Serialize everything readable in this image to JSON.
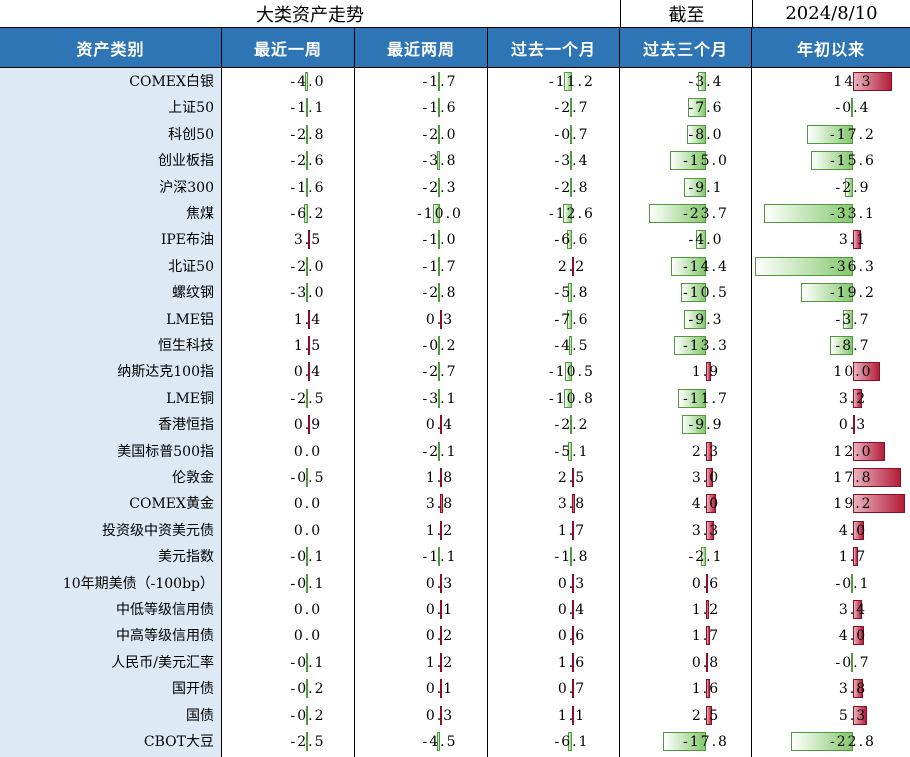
{
  "title": "大类资产走势",
  "as_of_label": "截至",
  "as_of_date": "2024/8/10",
  "columns": [
    "资产类别",
    "最近一周",
    "最近两周",
    "过去一个月",
    "过去三个月",
    "年初以来"
  ],
  "colors": {
    "header_bg": "#2e75b6",
    "name_bg": "#dde9f5",
    "positive": "#b41d3a",
    "negative": "#86c86e"
  },
  "rows": [
    {
      "name": "COMEX白银",
      "values": [
        "-4.0",
        "-1.7",
        "-11.2",
        "-3.4",
        "14.3"
      ]
    },
    {
      "name": "上证50",
      "values": [
        "-1.1",
        "-1.6",
        "-2.7",
        "-7.6",
        "-0.4"
      ]
    },
    {
      "name": "科创50",
      "values": [
        "-2.8",
        "-2.0",
        "-0.7",
        "-8.0",
        "-17.2"
      ]
    },
    {
      "name": "创业板指",
      "values": [
        "-2.6",
        "-3.8",
        "-3.4",
        "-15.0",
        "-15.6"
      ]
    },
    {
      "name": "沪深300",
      "values": [
        "-1.6",
        "-2.3",
        "-2.8",
        "-9.1",
        "-2.9"
      ]
    },
    {
      "name": "焦煤",
      "values": [
        "-6.2",
        "-10.0",
        "-12.6",
        "-23.7",
        "-33.1"
      ]
    },
    {
      "name": "IPE布油",
      "values": [
        "3.5",
        "-1.0",
        "-6.6",
        "-4.0",
        "3.1"
      ]
    },
    {
      "name": "北证50",
      "values": [
        "-2.0",
        "-1.7",
        "2.2",
        "-14.4",
        "-36.3"
      ]
    },
    {
      "name": "螺纹钢",
      "values": [
        "-3.0",
        "-2.8",
        "-5.8",
        "-10.5",
        "-19.2"
      ]
    },
    {
      "name": "LME铝",
      "values": [
        "1.4",
        "0.3",
        "-7.6",
        "-9.3",
        "-3.7"
      ]
    },
    {
      "name": "恒生科技",
      "values": [
        "1.5",
        "-0.2",
        "-4.5",
        "-13.3",
        "-8.7"
      ]
    },
    {
      "name": "纳斯达克100指",
      "values": [
        "0.4",
        "-2.7",
        "-10.5",
        "1.9",
        "10.0"
      ]
    },
    {
      "name": "LME铜",
      "values": [
        "-2.5",
        "-3.1",
        "-10.8",
        "-11.7",
        "3.2"
      ]
    },
    {
      "name": "香港恒指",
      "values": [
        "0.9",
        "0.4",
        "-2.2",
        "-9.9",
        "0.3"
      ]
    },
    {
      "name": "美国标普500指",
      "values": [
        "0.0",
        "-2.1",
        "-5.1",
        "2.3",
        "12.0"
      ]
    },
    {
      "name": "伦敦金",
      "values": [
        "-0.5",
        "1.8",
        "2.5",
        "3.0",
        "17.8"
      ]
    },
    {
      "name": "COMEX黄金",
      "values": [
        "0.0",
        "3.8",
        "3.8",
        "4.0",
        "19.2"
      ]
    },
    {
      "name": "投资级中资美元债",
      "values": [
        "0.0",
        "1.2",
        "1.7",
        "3.3",
        "4.0"
      ]
    },
    {
      "name": "美元指数",
      "values": [
        "-0.1",
        "-1.1",
        "-1.8",
        "-2.1",
        "1.7"
      ]
    },
    {
      "name": "10年期美债（-100bp）",
      "values": [
        "-0.1",
        "0.3",
        "0.3",
        "0.6",
        "-0.1"
      ]
    },
    {
      "name": "中低等级信用债",
      "values": [
        "0.0",
        "0.1",
        "0.4",
        "1.2",
        "3.4"
      ]
    },
    {
      "name": "中高等级信用债",
      "values": [
        "0.0",
        "0.2",
        "0.6",
        "1.7",
        "4.0"
      ]
    },
    {
      "name": "人民币/美元汇率",
      "values": [
        "-0.1",
        "1.2",
        "1.6",
        "0.8",
        "-0.7"
      ]
    },
    {
      "name": "国开债",
      "values": [
        "-0.2",
        "0.1",
        "0.7",
        "1.6",
        "3.8"
      ]
    },
    {
      "name": "国债",
      "values": [
        "-0.2",
        "0.3",
        "1.1",
        "2.5",
        "5.3"
      ]
    },
    {
      "name": "CBOT大豆",
      "values": [
        "-2.5",
        "-4.5",
        "-6.1",
        "-17.8",
        "-22.8"
      ]
    }
  ]
}
